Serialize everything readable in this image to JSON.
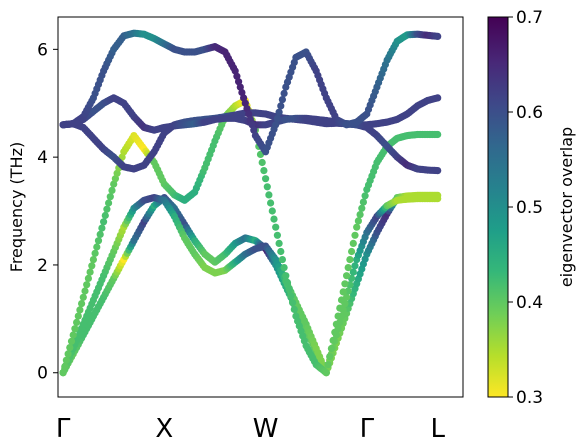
{
  "chart_data": {
    "type": "scatter",
    "title": "",
    "xlabel": "",
    "ylabel": "Frequency (THz)",
    "ylim": [
      -0.45,
      6.6
    ],
    "yticks": [
      0,
      2,
      4,
      6
    ],
    "xlim": [
      -0.05,
      3.95
    ],
    "high_symmetry_points": [
      {
        "label": "Γ",
        "x": 0.0
      },
      {
        "label": "X",
        "x": 1.0
      },
      {
        "label": "W",
        "x": 2.0
      },
      {
        "label": "Γ",
        "x": 3.0
      },
      {
        "label": "L",
        "x": 3.7
      }
    ],
    "colorbar": {
      "label": "eigenvector overlap",
      "colormap": "viridis",
      "range": [
        0.3,
        0.7
      ],
      "ticks": [
        "0.3",
        "0.4",
        "0.5",
        "0.6",
        "0.7"
      ]
    },
    "colors": {
      "viridis": [
        "#fde725",
        "#b5de2b",
        "#6ece58",
        "#35b779",
        "#1f9e89",
        "#26828e",
        "#31688e",
        "#3e4989",
        "#482878",
        "#440154"
      ]
    },
    "grid": false,
    "series": [
      {
        "x": [
          0.0,
          0.1,
          0.2,
          0.3,
          0.4,
          0.5,
          0.6,
          0.7,
          0.8,
          0.9,
          1.0,
          1.1,
          1.2,
          1.3,
          1.4,
          1.5,
          1.6,
          1.7,
          1.8,
          1.9,
          2.0,
          2.1,
          2.2,
          2.3,
          2.4,
          2.5,
          2.6,
          2.7,
          2.8,
          2.9,
          3.0,
          3.1,
          3.2,
          3.3,
          3.4,
          3.5,
          3.6,
          3.7
        ],
        "y": [
          0.0,
          0.35,
          0.7,
          1.05,
          1.4,
          1.75,
          2.1,
          2.45,
          2.8,
          3.1,
          3.25,
          3.05,
          2.75,
          2.45,
          2.2,
          2.05,
          2.2,
          2.4,
          2.5,
          2.45,
          2.3,
          2.0,
          1.6,
          1.2,
          0.8,
          0.4,
          0.0,
          0.55,
          1.1,
          1.65,
          2.2,
          2.6,
          2.95,
          3.25,
          3.28,
          3.29,
          3.29,
          3.29
        ],
        "overlap": [
          0.4,
          0.4,
          0.42,
          0.42,
          0.42,
          0.4,
          0.3,
          0.55,
          0.62,
          0.45,
          0.6,
          0.55,
          0.6,
          0.45,
          0.4,
          0.4,
          0.42,
          0.48,
          0.55,
          0.45,
          0.68,
          0.5,
          0.45,
          0.42,
          0.4,
          0.4,
          0.38,
          0.38,
          0.4,
          0.45,
          0.5,
          0.6,
          0.65,
          0.4,
          0.35,
          0.35,
          0.35,
          0.35
        ]
      },
      {
        "x": [
          0.0,
          0.1,
          0.2,
          0.3,
          0.4,
          0.5,
          0.6,
          0.7,
          0.8,
          0.9,
          1.0,
          1.1,
          1.2,
          1.3,
          1.4,
          1.5,
          1.6,
          1.7,
          1.8,
          1.9,
          2.0,
          2.1,
          2.2,
          2.3,
          2.4,
          2.5,
          2.6,
          2.7,
          2.8,
          2.9,
          3.0,
          3.1,
          3.2,
          3.3,
          3.4,
          3.5,
          3.6,
          3.7
        ],
        "y": [
          0.0,
          0.45,
          0.9,
          1.35,
          1.8,
          2.25,
          2.7,
          3.05,
          3.2,
          3.25,
          3.2,
          2.9,
          2.5,
          2.2,
          1.95,
          1.85,
          1.9,
          2.05,
          2.2,
          2.3,
          2.35,
          2.1,
          1.7,
          1.3,
          0.9,
          0.45,
          0.0,
          0.7,
          1.4,
          2.1,
          2.6,
          2.9,
          3.1,
          3.2,
          3.22,
          3.23,
          3.23,
          3.23
        ],
        "overlap": [
          0.4,
          0.42,
          0.42,
          0.42,
          0.42,
          0.4,
          0.35,
          0.5,
          0.6,
          0.62,
          0.55,
          0.45,
          0.4,
          0.4,
          0.38,
          0.38,
          0.38,
          0.45,
          0.55,
          0.6,
          0.6,
          0.5,
          0.42,
          0.4,
          0.4,
          0.38,
          0.38,
          0.4,
          0.4,
          0.45,
          0.55,
          0.62,
          0.4,
          0.35,
          0.35,
          0.35,
          0.35,
          0.35
        ]
      },
      {
        "x": [
          0.0,
          0.1,
          0.2,
          0.3,
          0.4,
          0.5,
          0.6,
          0.7,
          0.8,
          0.9,
          1.0,
          1.1,
          1.2,
          1.3,
          1.4,
          1.5,
          1.6,
          1.7,
          1.8,
          1.9,
          2.0,
          2.1,
          2.2,
          2.3,
          2.4,
          2.5,
          2.6,
          2.7,
          2.8,
          2.9,
          3.0,
          3.1,
          3.2,
          3.3,
          3.4,
          3.5,
          3.6,
          3.7
        ],
        "y": [
          0.0,
          0.7,
          1.4,
          2.1,
          2.8,
          3.5,
          4.1,
          4.4,
          4.15,
          3.9,
          3.5,
          3.3,
          3.2,
          3.35,
          3.8,
          4.3,
          4.75,
          4.95,
          5.05,
          4.5,
          3.6,
          2.7,
          1.8,
          1.05,
          0.5,
          0.15,
          0.0,
          0.9,
          1.8,
          2.7,
          3.4,
          3.9,
          4.2,
          4.35,
          4.4,
          4.42,
          4.42,
          4.42
        ],
        "overlap": [
          0.4,
          0.4,
          0.4,
          0.4,
          0.42,
          0.4,
          0.35,
          0.32,
          0.3,
          0.4,
          0.4,
          0.42,
          0.45,
          0.45,
          0.42,
          0.42,
          0.4,
          0.35,
          0.3,
          0.4,
          0.42,
          0.42,
          0.42,
          0.42,
          0.42,
          0.42,
          0.4,
          0.4,
          0.4,
          0.4,
          0.42,
          0.42,
          0.42,
          0.42,
          0.42,
          0.42,
          0.42,
          0.42
        ]
      },
      {
        "x": [
          0.0,
          0.1,
          0.2,
          0.3,
          0.4,
          0.5,
          0.6,
          0.7,
          0.8,
          0.9,
          1.0,
          1.1,
          1.2,
          1.3,
          1.4,
          1.5,
          1.6,
          1.7,
          1.8,
          1.9,
          2.0,
          2.1,
          2.2,
          2.3,
          2.4,
          2.5,
          2.6,
          2.7,
          2.8,
          2.9,
          3.0,
          3.1,
          3.2,
          3.3,
          3.4,
          3.5,
          3.6,
          3.7
        ],
        "y": [
          4.6,
          4.62,
          4.55,
          4.35,
          4.15,
          4.0,
          3.82,
          3.78,
          3.85,
          4.1,
          4.45,
          4.6,
          4.65,
          4.68,
          4.7,
          4.72,
          4.75,
          4.78,
          4.82,
          4.82,
          4.8,
          4.75,
          4.72,
          4.7,
          4.68,
          4.65,
          4.62,
          4.63,
          4.62,
          4.6,
          4.55,
          4.4,
          4.2,
          4.0,
          3.85,
          3.78,
          3.76,
          3.75
        ],
        "overlap": [
          0.62,
          0.62,
          0.62,
          0.62,
          0.62,
          0.6,
          0.62,
          0.62,
          0.62,
          0.62,
          0.62,
          0.62,
          0.6,
          0.6,
          0.6,
          0.6,
          0.6,
          0.62,
          0.62,
          0.62,
          0.62,
          0.62,
          0.62,
          0.62,
          0.62,
          0.62,
          0.62,
          0.62,
          0.62,
          0.62,
          0.62,
          0.62,
          0.6,
          0.62,
          0.65,
          0.62,
          0.62,
          0.62
        ]
      },
      {
        "x": [
          0.0,
          0.1,
          0.2,
          0.3,
          0.4,
          0.5,
          0.6,
          0.7,
          0.8,
          0.9,
          1.0,
          1.1,
          1.2,
          1.3,
          1.4,
          1.5,
          1.6,
          1.7,
          1.8,
          1.9,
          2.0,
          2.1,
          2.2,
          2.3,
          2.4,
          2.5,
          2.6,
          2.7,
          2.8,
          2.9,
          3.0,
          3.1,
          3.2,
          3.3,
          3.4,
          3.5,
          3.6,
          3.7
        ],
        "y": [
          4.6,
          4.62,
          4.7,
          4.85,
          5.0,
          5.1,
          5.0,
          4.75,
          4.55,
          4.5,
          4.55,
          4.58,
          4.6,
          4.62,
          4.65,
          4.7,
          4.72,
          4.72,
          4.68,
          4.6,
          4.6,
          4.65,
          4.7,
          4.72,
          4.72,
          4.7,
          4.68,
          4.65,
          4.62,
          4.6,
          4.6,
          4.62,
          4.65,
          4.7,
          4.8,
          4.95,
          5.05,
          5.1
        ],
        "overlap": [
          0.62,
          0.62,
          0.62,
          0.6,
          0.6,
          0.62,
          0.62,
          0.62,
          0.64,
          0.62,
          0.62,
          0.62,
          0.6,
          0.58,
          0.62,
          0.62,
          0.62,
          0.62,
          0.62,
          0.65,
          0.62,
          0.62,
          0.6,
          0.6,
          0.62,
          0.62,
          0.62,
          0.62,
          0.6,
          0.6,
          0.62,
          0.62,
          0.62,
          0.62,
          0.62,
          0.62,
          0.62,
          0.62
        ]
      },
      {
        "x": [
          0.0,
          0.1,
          0.2,
          0.3,
          0.4,
          0.5,
          0.6,
          0.7,
          0.8,
          0.9,
          1.0,
          1.1,
          1.2,
          1.3,
          1.4,
          1.5,
          1.6,
          1.7,
          1.8,
          1.9,
          2.0,
          2.1,
          2.2,
          2.3,
          2.4,
          2.5,
          2.6,
          2.7,
          2.8,
          2.9,
          3.0,
          3.1,
          3.2,
          3.3,
          3.4,
          3.5,
          3.6,
          3.7
        ],
        "y": [
          4.6,
          4.62,
          4.75,
          5.1,
          5.6,
          6.0,
          6.25,
          6.3,
          6.28,
          6.2,
          6.1,
          6.0,
          5.95,
          5.95,
          6.0,
          6.05,
          5.95,
          5.6,
          5.0,
          4.4,
          4.1,
          4.6,
          5.3,
          5.85,
          5.95,
          5.6,
          5.1,
          4.7,
          4.6,
          4.65,
          4.8,
          5.3,
          5.8,
          6.15,
          6.27,
          6.28,
          6.26,
          6.24
        ],
        "overlap": [
          0.62,
          0.62,
          0.62,
          0.6,
          0.6,
          0.58,
          0.58,
          0.55,
          0.5,
          0.5,
          0.55,
          0.6,
          0.6,
          0.6,
          0.6,
          0.65,
          0.66,
          0.66,
          0.66,
          0.62,
          0.6,
          0.6,
          0.6,
          0.6,
          0.6,
          0.62,
          0.62,
          0.62,
          0.6,
          0.6,
          0.6,
          0.58,
          0.55,
          0.5,
          0.48,
          0.6,
          0.65,
          0.62
        ]
      }
    ]
  }
}
